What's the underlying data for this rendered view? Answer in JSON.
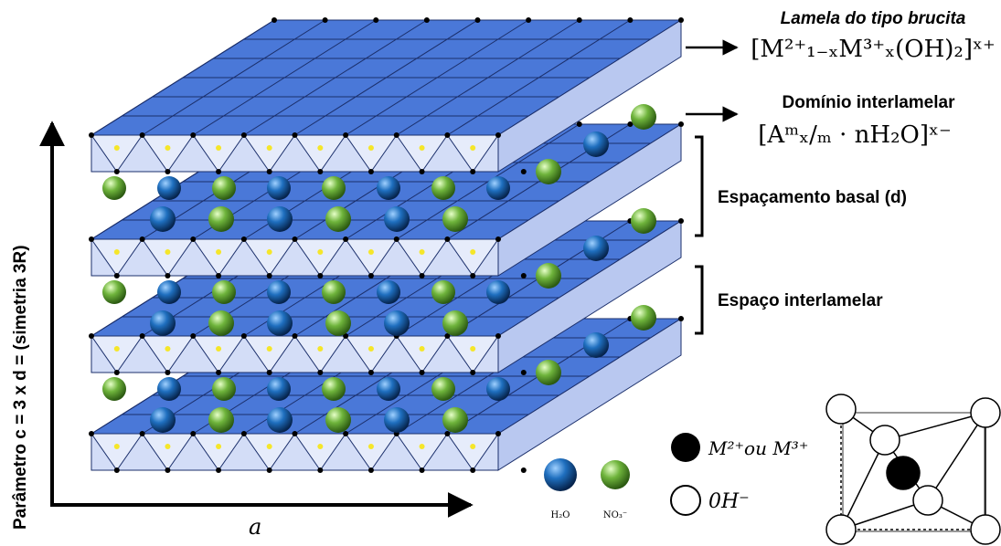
{
  "brucite": {
    "title": "Lamela do tipo brucita",
    "formula": "[M²⁺₁₋ₓM³⁺ₓ(OH)₂]ˣ⁺"
  },
  "interlayer": {
    "title": "Domínio interlamelar",
    "formula": "[Aᵐₓ/ₘ · nH₂O]ˣ⁻"
  },
  "basal_spacing": "Espaçamento basal (d)",
  "interlayer_space": "Espaço interlamelar",
  "axis": {
    "c": "Parâmetro c = 3 x d = (simetria 3R)",
    "a": "a"
  },
  "anions": {
    "water": "H₂O",
    "nitrate": "NO₃⁻"
  },
  "octahedron": {
    "metal": "M²⁺ou M³⁺",
    "hydroxide": "0H⁻"
  }
}
